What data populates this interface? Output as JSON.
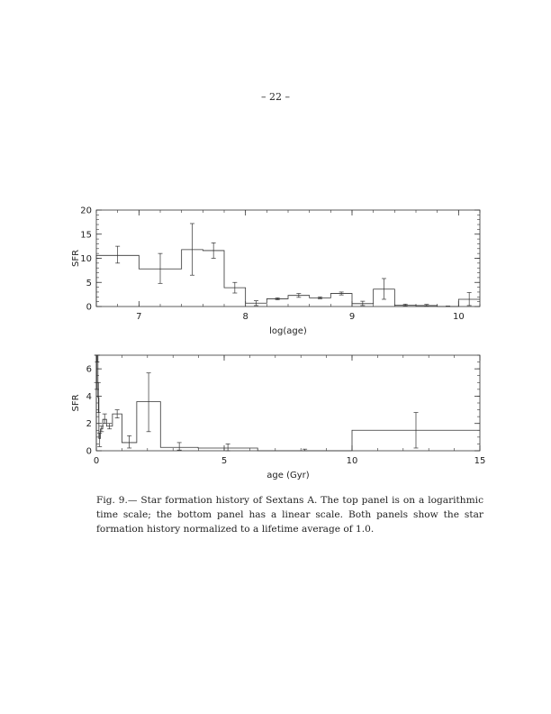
{
  "page_number": "– 22 –",
  "caption": "Fig. 9.— Star formation history of Sextans A. The top panel is on a logarithmic time scale; the bottom panel has a linear scale. Both panels show the star formation history normalized to a lifetime average of 1.0.",
  "chart_data": [
    {
      "type": "histogram-step",
      "xlabel": "log(age)",
      "ylabel": "SFR",
      "xlim": [
        6.6,
        10.2
      ],
      "ylim": [
        0,
        20
      ],
      "xticks": [
        7,
        8,
        9,
        10
      ],
      "yticks": [
        0,
        5,
        10,
        15,
        20
      ],
      "bins": [
        {
          "x0": 6.6,
          "x1": 7.0,
          "y": 10.6,
          "err_lo": 9.0,
          "err_hi": 12.5
        },
        {
          "x0": 7.0,
          "x1": 7.4,
          "y": 7.8,
          "err_lo": 4.8,
          "err_hi": 11.0
        },
        {
          "x0": 7.4,
          "x1": 7.6,
          "y": 11.8,
          "err_lo": 6.5,
          "err_hi": 17.2
        },
        {
          "x0": 7.6,
          "x1": 7.8,
          "y": 11.6,
          "err_lo": 10.0,
          "err_hi": 13.2
        },
        {
          "x0": 7.8,
          "x1": 8.0,
          "y": 3.9,
          "err_lo": 2.8,
          "err_hi": 5.0
        },
        {
          "x0": 8.0,
          "x1": 8.2,
          "y": 0.7,
          "err_lo": 0.2,
          "err_hi": 1.2
        },
        {
          "x0": 8.2,
          "x1": 8.4,
          "y": 1.6,
          "err_lo": 1.4,
          "err_hi": 1.8
        },
        {
          "x0": 8.4,
          "x1": 8.6,
          "y": 2.3,
          "err_lo": 1.9,
          "err_hi": 2.7
        },
        {
          "x0": 8.6,
          "x1": 8.8,
          "y": 1.8,
          "err_lo": 1.6,
          "err_hi": 2.0
        },
        {
          "x0": 8.8,
          "x1": 9.0,
          "y": 2.7,
          "err_lo": 2.4,
          "err_hi": 3.0
        },
        {
          "x0": 9.0,
          "x1": 9.2,
          "y": 0.6,
          "err_lo": 0.2,
          "err_hi": 1.1
        },
        {
          "x0": 9.2,
          "x1": 9.4,
          "y": 3.6,
          "err_lo": 1.5,
          "err_hi": 5.8
        },
        {
          "x0": 9.4,
          "x1": 9.6,
          "y": 0.25,
          "err_lo": 0.1,
          "err_hi": 0.5
        },
        {
          "x0": 9.6,
          "x1": 9.8,
          "y": 0.2,
          "err_lo": 0.05,
          "err_hi": 0.45
        },
        {
          "x0": 9.8,
          "x1": 10.0,
          "y": 0.0,
          "err_lo": 0.0,
          "err_hi": 0.1
        },
        {
          "x0": 10.0,
          "x1": 10.2,
          "y": 1.5,
          "err_lo": 0.2,
          "err_hi": 2.9
        }
      ]
    },
    {
      "type": "histogram-step",
      "xlabel": "age (Gyr)",
      "ylabel": "SFR",
      "xlim": [
        0,
        15
      ],
      "ylim": [
        0,
        7
      ],
      "xticks": [
        0,
        5,
        10,
        15
      ],
      "yticks": [
        0,
        2,
        4,
        6
      ],
      "bins": [
        {
          "x0": 0.0,
          "x1": 0.01,
          "y": 7.0,
          "err_lo": 5.0,
          "err_hi": 7.0
        },
        {
          "x0": 0.01,
          "x1": 0.025,
          "y": 7.0,
          "err_lo": 4.5,
          "err_hi": 7.0
        },
        {
          "x0": 0.025,
          "x1": 0.04,
          "y": 7.0,
          "err_lo": 6.5,
          "err_hi": 7.0
        },
        {
          "x0": 0.04,
          "x1": 0.063,
          "y": 7.0,
          "err_lo": 7.0,
          "err_hi": 7.0
        },
        {
          "x0": 0.063,
          "x1": 0.1,
          "y": 3.9,
          "err_lo": 2.8,
          "err_hi": 5.0
        },
        {
          "x0": 0.1,
          "x1": 0.16,
          "y": 0.9,
          "err_lo": 0.3,
          "err_hi": 1.3
        },
        {
          "x0": 0.16,
          "x1": 0.25,
          "y": 1.6,
          "err_lo": 1.4,
          "err_hi": 1.8
        },
        {
          "x0": 0.25,
          "x1": 0.4,
          "y": 2.3,
          "err_lo": 2.0,
          "err_hi": 2.7
        },
        {
          "x0": 0.4,
          "x1": 0.63,
          "y": 1.8,
          "err_lo": 1.6,
          "err_hi": 2.0
        },
        {
          "x0": 0.63,
          "x1": 1.0,
          "y": 2.7,
          "err_lo": 2.4,
          "err_hi": 3.0
        },
        {
          "x0": 1.0,
          "x1": 1.58,
          "y": 0.6,
          "err_lo": 0.2,
          "err_hi": 1.1
        },
        {
          "x0": 1.58,
          "x1": 2.51,
          "y": 3.6,
          "err_lo": 1.4,
          "err_hi": 5.7
        },
        {
          "x0": 2.51,
          "x1": 3.98,
          "y": 0.25,
          "err_lo": 0.05,
          "err_hi": 0.6
        },
        {
          "x0": 3.98,
          "x1": 6.31,
          "y": 0.2,
          "err_lo": 0.0,
          "err_hi": 0.5
        },
        {
          "x0": 6.31,
          "x1": 10.0,
          "y": 0.0,
          "err_lo": 0.0,
          "err_hi": 0.12
        },
        {
          "x0": 10.0,
          "x1": 15.85,
          "y": 1.5,
          "err_lo": 0.2,
          "err_hi": 2.8
        }
      ]
    }
  ]
}
